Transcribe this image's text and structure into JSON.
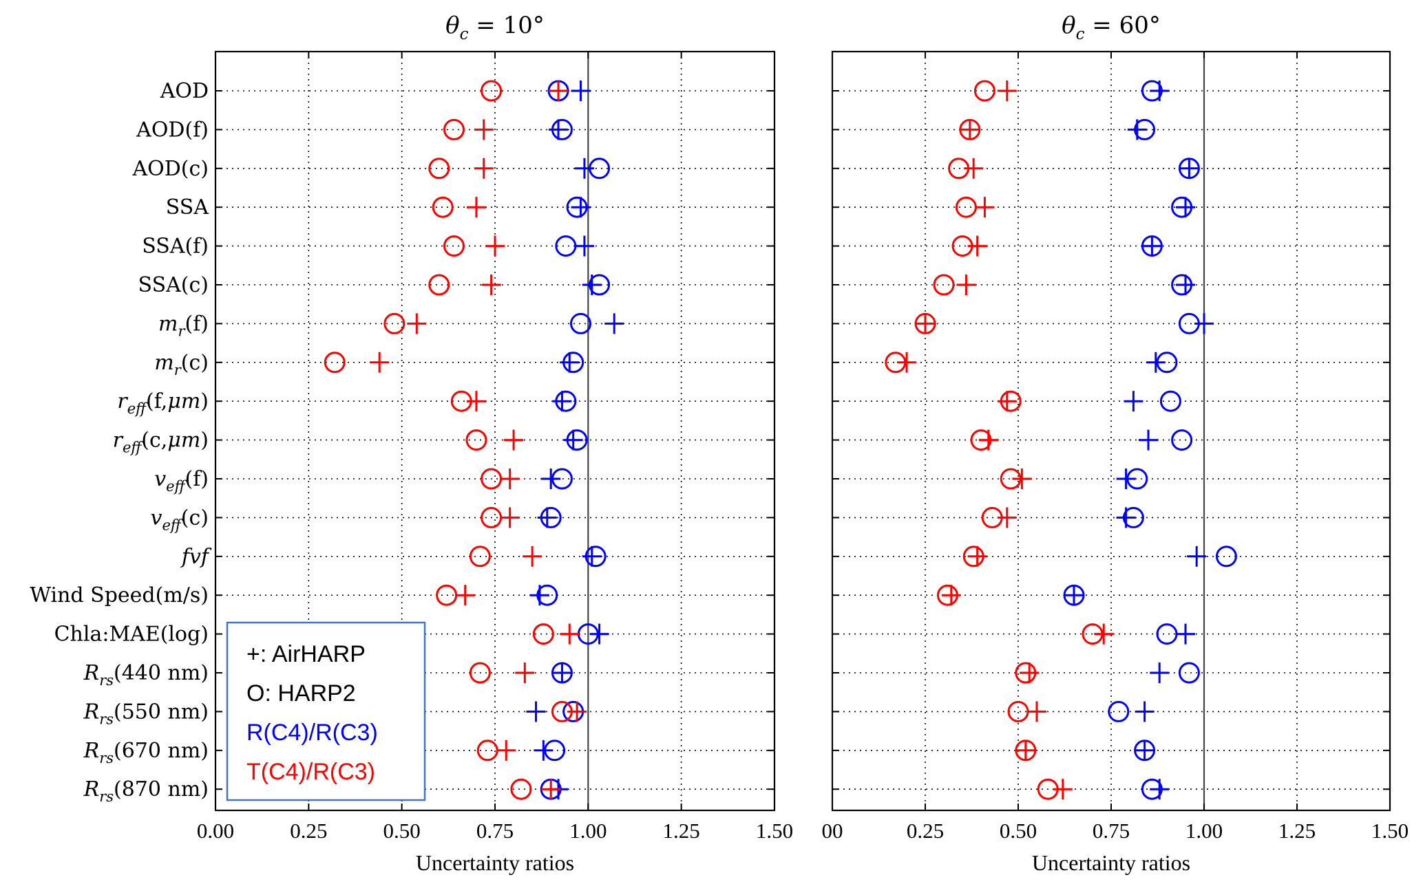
{
  "chart_data": [
    {
      "type": "scatter",
      "title": "θ_c = 10°",
      "title_parts": {
        "symbol": "θ",
        "sub": "c",
        "rest": " = 10°"
      },
      "xlabel": "Uncertainty ratios",
      "ylabel": "",
      "xlim": [
        0,
        1.5
      ],
      "xticks": [
        0,
        0.25,
        0.5,
        0.75,
        1.0,
        1.25,
        1.5
      ],
      "xtick_labels": [
        "0.00",
        "0.25",
        "0.50",
        "0.75",
        "1.00",
        "1.25",
        "1.50"
      ],
      "grid": true,
      "reference_line": 1.0,
      "series": [
        {
          "name": "R(C4)/R(C3)",
          "instrument": "AirHARP",
          "marker": "plus",
          "color": "#0000ff",
          "values": [
            0.98,
            0.92,
            0.99,
            0.98,
            0.99,
            1.01,
            1.07,
            0.95,
            0.93,
            0.96,
            0.9,
            0.89,
            1.01,
            0.87,
            1.03,
            0.93,
            0.86,
            0.88,
            0.92
          ]
        },
        {
          "name": "R(C4)/R(C3)",
          "instrument": "HARP2",
          "marker": "circle",
          "color": "#0000ff",
          "values": [
            0.92,
            0.93,
            1.03,
            0.97,
            0.94,
            1.03,
            0.98,
            0.96,
            0.94,
            0.97,
            0.93,
            0.9,
            1.02,
            0.89,
            1.0,
            0.93,
            0.96,
            0.91,
            0.9
          ]
        },
        {
          "name": "T(C4)/R(C3)",
          "instrument": "AirHARP",
          "marker": "plus",
          "color": "#ff0000",
          "values": [
            0.92,
            0.72,
            0.72,
            0.7,
            0.75,
            0.74,
            0.54,
            0.44,
            0.7,
            0.8,
            0.79,
            0.79,
            0.85,
            0.67,
            0.95,
            0.83,
            0.97,
            0.78,
            0.9
          ]
        },
        {
          "name": "T(C4)/R(C3)",
          "instrument": "HARP2",
          "marker": "circle",
          "color": "#ff0000",
          "values": [
            0.74,
            0.64,
            0.6,
            0.61,
            0.64,
            0.6,
            0.48,
            0.32,
            0.66,
            0.7,
            0.74,
            0.74,
            0.71,
            0.62,
            0.88,
            0.71,
            0.93,
            0.73,
            0.82
          ]
        }
      ]
    },
    {
      "type": "scatter",
      "title": "θ_c = 60°",
      "title_parts": {
        "symbol": "θ",
        "sub": "c",
        "rest": " = 60°"
      },
      "xlabel": "Uncertainty ratios",
      "ylabel": "",
      "xlim": [
        0,
        1.5
      ],
      "xticks": [
        0,
        0.25,
        0.5,
        0.75,
        1.0,
        1.25,
        1.5
      ],
      "xtick_labels": [
        "00",
        "0.25",
        "0.50",
        "0.75",
        "1.00",
        "1.25",
        "1.50"
      ],
      "grid": true,
      "reference_line": 1.0,
      "series": [
        {
          "name": "R(C4)/R(C3)",
          "instrument": "AirHARP",
          "marker": "plus",
          "color": "#0000ff",
          "values": [
            0.88,
            0.82,
            0.96,
            0.95,
            0.86,
            0.95,
            1.0,
            0.87,
            0.81,
            0.85,
            0.79,
            0.79,
            0.98,
            0.65,
            0.95,
            0.88,
            0.84,
            0.84,
            0.88
          ]
        },
        {
          "name": "R(C4)/R(C3)",
          "instrument": "HARP2",
          "marker": "circle",
          "color": "#0000ff",
          "values": [
            0.86,
            0.84,
            0.96,
            0.94,
            0.86,
            0.94,
            0.96,
            0.9,
            0.91,
            0.94,
            0.82,
            0.81,
            1.06,
            0.65,
            0.9,
            0.96,
            0.77,
            0.84,
            0.86
          ]
        },
        {
          "name": "T(C4)/R(C3)",
          "instrument": "AirHARP",
          "marker": "plus",
          "color": "#ff0000",
          "values": [
            0.47,
            0.37,
            0.38,
            0.41,
            0.39,
            0.36,
            0.25,
            0.2,
            0.47,
            0.42,
            0.51,
            0.47,
            0.39,
            0.32,
            0.73,
            0.53,
            0.55,
            0.52,
            0.62
          ]
        },
        {
          "name": "T(C4)/R(C3)",
          "instrument": "HARP2",
          "marker": "circle",
          "color": "#ff0000",
          "values": [
            0.41,
            0.37,
            0.34,
            0.36,
            0.35,
            0.3,
            0.25,
            0.17,
            0.48,
            0.4,
            0.48,
            0.43,
            0.38,
            0.31,
            0.7,
            0.52,
            0.5,
            0.52,
            0.58
          ]
        }
      ]
    }
  ],
  "categories": [
    {
      "base": "AOD"
    },
    {
      "base": "AOD(f)"
    },
    {
      "base": "AOD(c)"
    },
    {
      "base": "SSA"
    },
    {
      "base": "SSA(f)"
    },
    {
      "base": "SSA(c)"
    },
    {
      "base": "m",
      "sub": "r",
      "suffix": "(f)"
    },
    {
      "base": "m",
      "sub": "r",
      "suffix": "(c)"
    },
    {
      "base": "r",
      "sub": "eff",
      "suffix": "(f,",
      "mu": "μm",
      "close": ")"
    },
    {
      "base": "r",
      "sub": "eff",
      "suffix": "(c,",
      "mu": "μm",
      "close": ")"
    },
    {
      "base": "v",
      "sub": "eff",
      "suffix": "(f)"
    },
    {
      "base": "v",
      "sub": "eff",
      "suffix": "(c)"
    },
    {
      "base": "fvf",
      "italic": true
    },
    {
      "base": "Wind Speed(m/s)"
    },
    {
      "base": "Chla:MAE(log)"
    },
    {
      "base": "R",
      "sub": "rs",
      "suffix": "(440 nm)"
    },
    {
      "base": "R",
      "sub": "rs",
      "suffix": "(550 nm)"
    },
    {
      "base": "R",
      "sub": "rs",
      "suffix": "(670 nm)"
    },
    {
      "base": "R",
      "sub": "rs",
      "suffix": "(870 nm)"
    }
  ],
  "legend": {
    "placement": "bottom-left",
    "entries": [
      {
        "text": "+: AirHARP",
        "color": "#000000"
      },
      {
        "text": "O: HARP2",
        "color": "#000000"
      },
      {
        "text": "R(C4)/R(C3)",
        "color": "#0000ff"
      },
      {
        "text": "T(C4)/R(C3)",
        "color": "#ff0000"
      }
    ],
    "border_color": "#4472c4"
  }
}
